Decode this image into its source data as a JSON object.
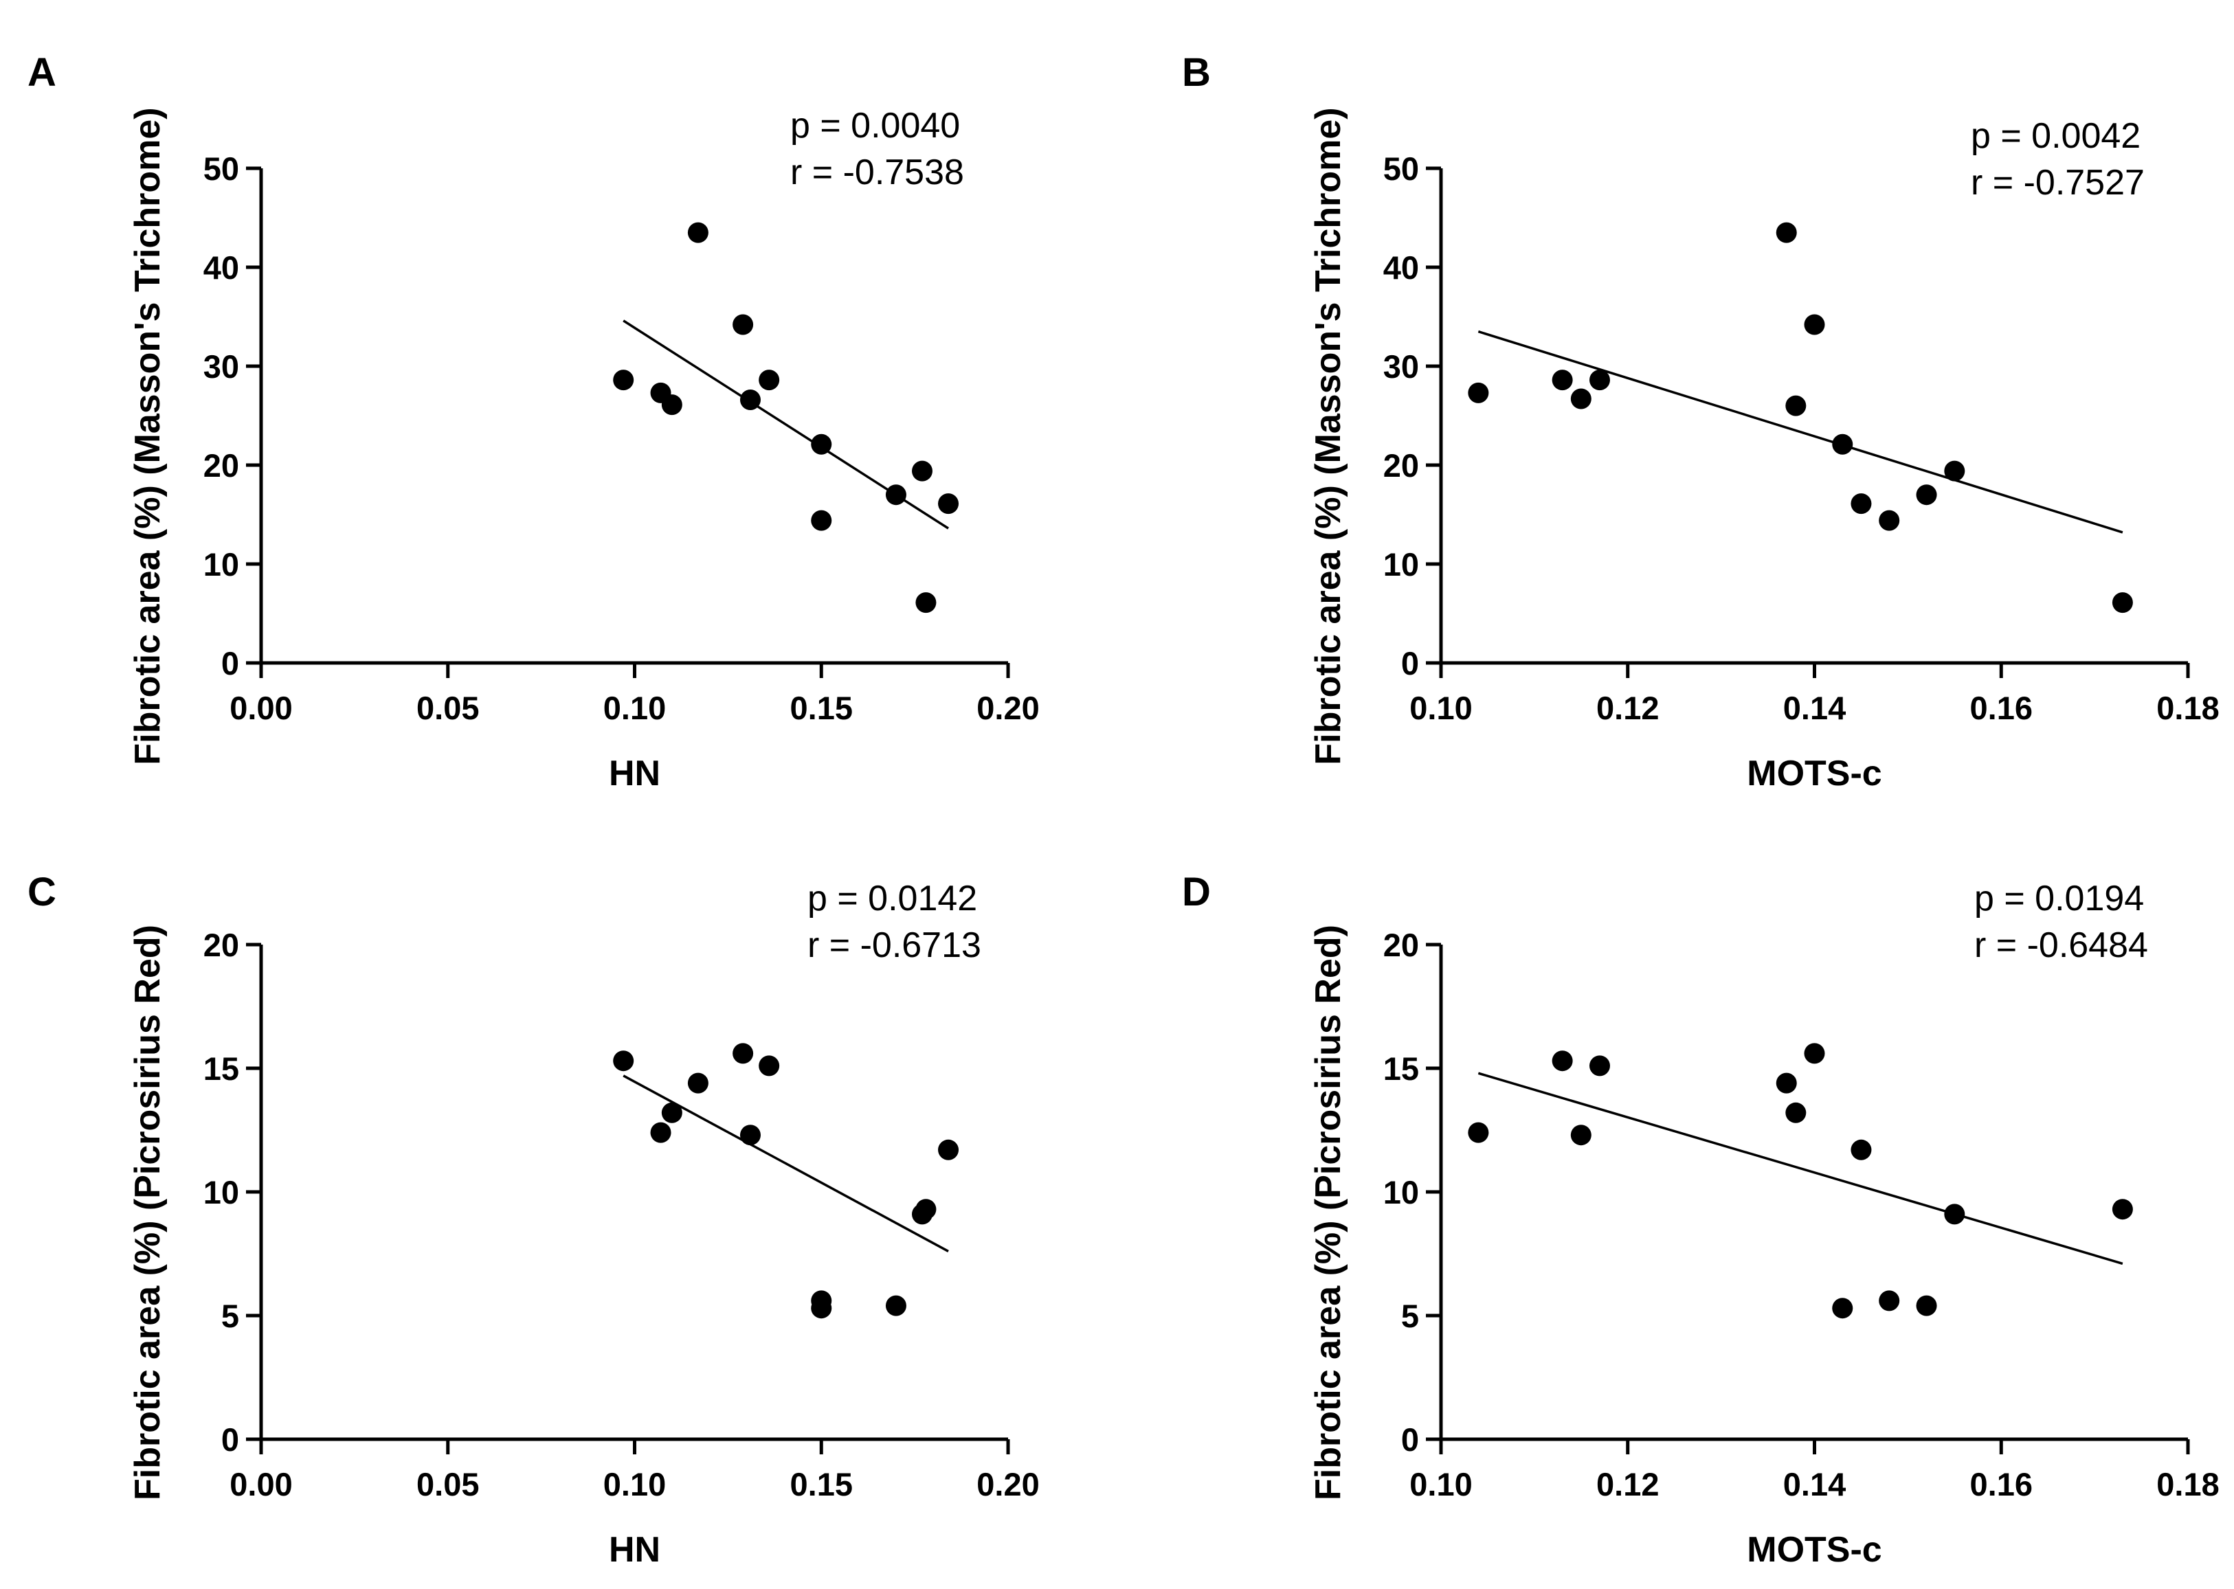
{
  "chart_data": [
    {
      "panel": "A",
      "type": "scatter",
      "xlabel": "HN",
      "ylabel": "Fibrotic area (%) (Masson's Trichrome)",
      "xlim": [
        0.0,
        0.2
      ],
      "ylim": [
        0,
        50
      ],
      "xticks": [
        "0.00",
        "0.05",
        "0.10",
        "0.15",
        "0.20"
      ],
      "yticks": [
        "0",
        "10",
        "20",
        "30",
        "40",
        "50"
      ],
      "p_text": "p = 0.0040",
      "r_text": "r = -0.7538",
      "points": [
        {
          "x": 0.097,
          "y": 28.6
        },
        {
          "x": 0.107,
          "y": 27.3
        },
        {
          "x": 0.11,
          "y": 26.1
        },
        {
          "x": 0.117,
          "y": 43.5
        },
        {
          "x": 0.129,
          "y": 34.2
        },
        {
          "x": 0.131,
          "y": 26.6
        },
        {
          "x": 0.136,
          "y": 28.6
        },
        {
          "x": 0.15,
          "y": 22.1
        },
        {
          "x": 0.15,
          "y": 14.4
        },
        {
          "x": 0.17,
          "y": 17.0
        },
        {
          "x": 0.177,
          "y": 19.4
        },
        {
          "x": 0.178,
          "y": 6.1
        },
        {
          "x": 0.184,
          "y": 16.1
        }
      ],
      "fit": {
        "x": [
          0.097,
          0.184
        ],
        "y": [
          34.6,
          13.6
        ]
      }
    },
    {
      "panel": "B",
      "type": "scatter",
      "xlabel": "MOTS-c",
      "ylabel": "Fibrotic area (%) (Masson's Trichrome)",
      "xlim": [
        0.1,
        0.18
      ],
      "ylim": [
        0,
        50
      ],
      "xticks": [
        "0.10",
        "0.12",
        "0.14",
        "0.16",
        "0.18"
      ],
      "yticks": [
        "0",
        "10",
        "20",
        "30",
        "40",
        "50"
      ],
      "p_text": "p = 0.0042",
      "r_text": "r = -0.7527",
      "points": [
        {
          "x": 0.104,
          "y": 27.3
        },
        {
          "x": 0.113,
          "y": 28.6
        },
        {
          "x": 0.115,
          "y": 26.7
        },
        {
          "x": 0.117,
          "y": 28.6
        },
        {
          "x": 0.137,
          "y": 43.5
        },
        {
          "x": 0.138,
          "y": 26.0
        },
        {
          "x": 0.14,
          "y": 34.2
        },
        {
          "x": 0.143,
          "y": 22.1
        },
        {
          "x": 0.145,
          "y": 16.1
        },
        {
          "x": 0.148,
          "y": 14.4
        },
        {
          "x": 0.152,
          "y": 17.0
        },
        {
          "x": 0.155,
          "y": 19.4
        },
        {
          "x": 0.173,
          "y": 6.1
        }
      ],
      "fit": {
        "x": [
          0.104,
          0.173
        ],
        "y": [
          33.5,
          13.2
        ]
      }
    },
    {
      "panel": "C",
      "type": "scatter",
      "xlabel": "HN",
      "ylabel": "Fibrotic area (%) (Picrosirius Red)",
      "xlim": [
        0.0,
        0.2
      ],
      "ylim": [
        0,
        20
      ],
      "xticks": [
        "0.00",
        "0.05",
        "0.10",
        "0.15",
        "0.20"
      ],
      "yticks": [
        "0",
        "5",
        "10",
        "15",
        "20"
      ],
      "p_text": "p = 0.0142",
      "r_text": "r = -0.6713",
      "points": [
        {
          "x": 0.097,
          "y": 15.3
        },
        {
          "x": 0.107,
          "y": 12.4
        },
        {
          "x": 0.11,
          "y": 13.2
        },
        {
          "x": 0.117,
          "y": 14.4
        },
        {
          "x": 0.129,
          "y": 15.6
        },
        {
          "x": 0.131,
          "y": 12.3
        },
        {
          "x": 0.136,
          "y": 15.1
        },
        {
          "x": 0.15,
          "y": 5.6
        },
        {
          "x": 0.15,
          "y": 5.3
        },
        {
          "x": 0.17,
          "y": 5.4
        },
        {
          "x": 0.177,
          "y": 9.1
        },
        {
          "x": 0.178,
          "y": 9.3
        },
        {
          "x": 0.184,
          "y": 11.7
        }
      ],
      "fit": {
        "x": [
          0.097,
          0.184
        ],
        "y": [
          14.7,
          7.6
        ]
      }
    },
    {
      "panel": "D",
      "type": "scatter",
      "xlabel": "MOTS-c",
      "ylabel": "Fibrotic area (%) (Picrosirius Red)",
      "xlim": [
        0.1,
        0.18
      ],
      "ylim": [
        0,
        20
      ],
      "xticks": [
        "0.10",
        "0.12",
        "0.14",
        "0.16",
        "0.18"
      ],
      "yticks": [
        "0",
        "5",
        "10",
        "15",
        "20"
      ],
      "p_text": "p = 0.0194",
      "r_text": "r = -0.6484",
      "points": [
        {
          "x": 0.104,
          "y": 12.4
        },
        {
          "x": 0.113,
          "y": 15.3
        },
        {
          "x": 0.115,
          "y": 12.3
        },
        {
          "x": 0.117,
          "y": 15.1
        },
        {
          "x": 0.137,
          "y": 14.4
        },
        {
          "x": 0.138,
          "y": 13.2
        },
        {
          "x": 0.14,
          "y": 15.6
        },
        {
          "x": 0.143,
          "y": 5.3
        },
        {
          "x": 0.145,
          "y": 11.7
        },
        {
          "x": 0.148,
          "y": 5.6
        },
        {
          "x": 0.152,
          "y": 5.4
        },
        {
          "x": 0.155,
          "y": 9.1
        },
        {
          "x": 0.173,
          "y": 9.3
        }
      ],
      "fit": {
        "x": [
          0.104,
          0.173
        ],
        "y": [
          14.8,
          7.1
        ]
      }
    }
  ]
}
